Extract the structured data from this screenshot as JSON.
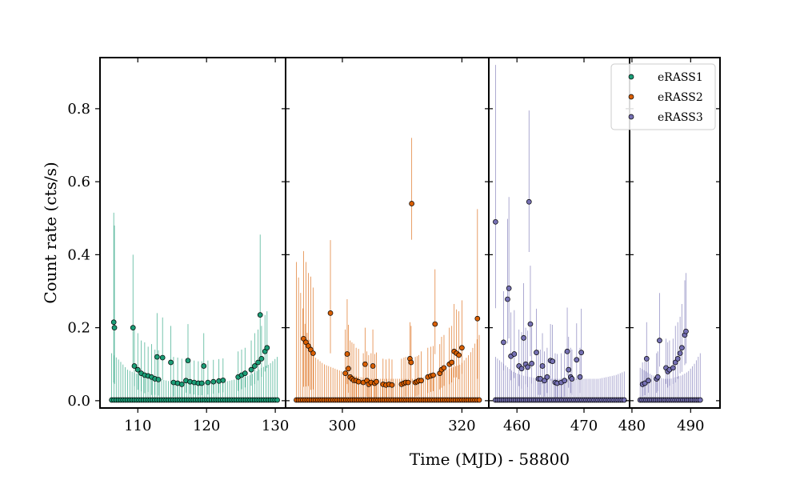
{
  "chart_data": {
    "type": "scatter",
    "xlabel": "Time (MJD) - 58800",
    "ylabel": "Count rate (cts/s)",
    "ylim": [
      -0.02,
      0.94
    ],
    "yticks": [
      0.0,
      0.2,
      0.4,
      0.6,
      0.8
    ],
    "ytick_labels": [
      "0.0",
      "0.2",
      "0.4",
      "0.6",
      "0.8"
    ],
    "legend_position": "top-right",
    "panels": [
      {
        "xlim": [
          104.5,
          131.5
        ],
        "xticks": [
          110,
          120,
          130
        ],
        "xtick_labels": [
          "110",
          "120",
          "130"
        ],
        "zero_range": [
          106.2,
          130.3
        ],
        "zero_step": 0.33,
        "zero_err": [
          0.13,
          0.11,
          0.085,
          0.075,
          0.07,
          0.065,
          0.06,
          0.055,
          0.05,
          0.05,
          0.05,
          0.05,
          0.05,
          0.05,
          0.05,
          0.055,
          0.06,
          0.065,
          0.075,
          0.09,
          0.1,
          0.12
        ],
        "series": 0,
        "points": [
          [
            106.5,
            0.215,
            0.3
          ],
          [
            106.6,
            0.2,
            0.28
          ],
          [
            109.3,
            0.2,
            0.2
          ],
          [
            109.5,
            0.095,
            0.1
          ],
          [
            110.0,
            0.085,
            0.1
          ],
          [
            110.5,
            0.075,
            0.09
          ],
          [
            111.0,
            0.07,
            0.09
          ],
          [
            111.5,
            0.068,
            0.08
          ],
          [
            112.0,
            0.065,
            0.09
          ],
          [
            112.5,
            0.06,
            0.08
          ],
          [
            112.8,
            0.12,
            0.12
          ],
          [
            113.0,
            0.058,
            0.08
          ],
          [
            113.6,
            0.118,
            0.11
          ],
          [
            114.8,
            0.105,
            0.1
          ],
          [
            115.2,
            0.05,
            0.07
          ],
          [
            115.8,
            0.048,
            0.07
          ],
          [
            116.4,
            0.045,
            0.07
          ],
          [
            117.0,
            0.055,
            0.06
          ],
          [
            117.3,
            0.11,
            0.1
          ],
          [
            117.6,
            0.052,
            0.06
          ],
          [
            118.2,
            0.05,
            0.06
          ],
          [
            118.8,
            0.048,
            0.06
          ],
          [
            119.3,
            0.048,
            0.06
          ],
          [
            119.6,
            0.095,
            0.09
          ],
          [
            120.2,
            0.05,
            0.06
          ],
          [
            121.0,
            0.052,
            0.06
          ],
          [
            121.8,
            0.054,
            0.06
          ],
          [
            122.4,
            0.056,
            0.06
          ],
          [
            124.6,
            0.065,
            0.07
          ],
          [
            125.1,
            0.07,
            0.07
          ],
          [
            125.6,
            0.075,
            0.07
          ],
          [
            126.5,
            0.085,
            0.08
          ],
          [
            127.0,
            0.095,
            0.09
          ],
          [
            127.5,
            0.105,
            0.09
          ],
          [
            127.8,
            0.235,
            0.22
          ],
          [
            128.0,
            0.115,
            0.09
          ],
          [
            128.5,
            0.135,
            0.1
          ],
          [
            128.8,
            0.145,
            0.1
          ]
        ]
      },
      {
        "xlim": [
          290.5,
          324.5
        ],
        "xticks": [
          300,
          320
        ],
        "xtick_labels": [
          "300",
          "320"
        ],
        "zero_range": [
          292.3,
          323.2
        ],
        "zero_step": 0.36,
        "zero_err": [
          0.38,
          0.2,
          0.12,
          0.1,
          0.09,
          0.08,
          0.07,
          0.065,
          0.06,
          0.06,
          0.06,
          0.06,
          0.06,
          0.06,
          0.065,
          0.07,
          0.08,
          0.09,
          0.1,
          0.13,
          0.18
        ],
        "series": 1,
        "points": [
          [
            293.5,
            0.17,
            0.24
          ],
          [
            293.9,
            0.16,
            0.22
          ],
          [
            294.3,
            0.15,
            0.2
          ],
          [
            294.7,
            0.14,
            0.2
          ],
          [
            295.1,
            0.13,
            0.18
          ],
          [
            298.0,
            0.24,
            0.2
          ],
          [
            300.5,
            0.075,
            0.12
          ],
          [
            300.8,
            0.128,
            0.15
          ],
          [
            301.0,
            0.088,
            0.12
          ],
          [
            301.3,
            0.065,
            0.1
          ],
          [
            301.6,
            0.06,
            0.1
          ],
          [
            301.9,
            0.056,
            0.1
          ],
          [
            302.3,
            0.055,
            0.09
          ],
          [
            302.7,
            0.052,
            0.09
          ],
          [
            303.5,
            0.05,
            0.08
          ],
          [
            303.8,
            0.1,
            0.1
          ],
          [
            304.1,
            0.055,
            0.08
          ],
          [
            304.4,
            0.045,
            0.08
          ],
          [
            304.8,
            0.05,
            0.08
          ],
          [
            305.1,
            0.095,
            0.1
          ],
          [
            305.4,
            0.048,
            0.08
          ],
          [
            305.7,
            0.052,
            0.08
          ],
          [
            306.8,
            0.045,
            0.07
          ],
          [
            307.3,
            0.043,
            0.07
          ],
          [
            307.8,
            0.045,
            0.07
          ],
          [
            308.3,
            0.043,
            0.07
          ],
          [
            309.9,
            0.045,
            0.07
          ],
          [
            310.3,
            0.048,
            0.07
          ],
          [
            310.6,
            0.05,
            0.07
          ],
          [
            311.0,
            0.05,
            0.07
          ],
          [
            311.3,
            0.115,
            0.1
          ],
          [
            311.5,
            0.105,
            0.1
          ],
          [
            311.6,
            0.54,
            0.18
          ],
          [
            312.2,
            0.05,
            0.07
          ],
          [
            312.5,
            0.052,
            0.07
          ],
          [
            312.8,
            0.055,
            0.07
          ],
          [
            313.2,
            0.055,
            0.08
          ],
          [
            314.3,
            0.065,
            0.08
          ],
          [
            314.8,
            0.068,
            0.08
          ],
          [
            315.2,
            0.07,
            0.08
          ],
          [
            315.5,
            0.21,
            0.15
          ],
          [
            316.3,
            0.075,
            0.08
          ],
          [
            316.6,
            0.085,
            0.09
          ],
          [
            317.0,
            0.09,
            0.09
          ],
          [
            317.9,
            0.1,
            0.1
          ],
          [
            318.3,
            0.105,
            0.1
          ],
          [
            318.7,
            0.135,
            0.13
          ],
          [
            319.1,
            0.13,
            0.12
          ],
          [
            319.5,
            0.125,
            0.12
          ],
          [
            320.0,
            0.145,
            0.13
          ],
          [
            322.6,
            0.225,
            0.3
          ]
        ]
      },
      {
        "xlim": [
          455.8,
          476.8
        ],
        "xticks": [
          460,
          470
        ],
        "xtick_labels": [
          "460",
          "470"
        ],
        "zero_range": [
          456.8,
          476.2
        ],
        "zero_step": 0.3,
        "zero_err": [
          0.12,
          0.1,
          0.08,
          0.07,
          0.065,
          0.06,
          0.06,
          0.06,
          0.06,
          0.06,
          0.06,
          0.06,
          0.06,
          0.065,
          0.07,
          0.08
        ],
        "series": 2,
        "points": [
          [
            456.8,
            0.49,
            0.43
          ],
          [
            458.0,
            0.16,
            0.14
          ],
          [
            458.6,
            0.278,
            0.22
          ],
          [
            458.8,
            0.308,
            0.25
          ],
          [
            459.1,
            0.122,
            0.12
          ],
          [
            459.6,
            0.128,
            0.12
          ],
          [
            460.3,
            0.095,
            0.1
          ],
          [
            460.7,
            0.088,
            0.1
          ],
          [
            461.0,
            0.172,
            0.15
          ],
          [
            461.3,
            0.1,
            0.1
          ],
          [
            461.6,
            0.092,
            0.1
          ],
          [
            461.8,
            0.545,
            0.25
          ],
          [
            462.0,
            0.21,
            0.16
          ],
          [
            462.2,
            0.102,
            0.1
          ],
          [
            462.9,
            0.132,
            0.12
          ],
          [
            463.2,
            0.06,
            0.08
          ],
          [
            463.5,
            0.06,
            0.08
          ],
          [
            463.8,
            0.095,
            0.09
          ],
          [
            464.1,
            0.055,
            0.08
          ],
          [
            464.5,
            0.065,
            0.08
          ],
          [
            465.0,
            0.11,
            0.1
          ],
          [
            465.3,
            0.108,
            0.1
          ],
          [
            465.7,
            0.05,
            0.08
          ],
          [
            466.0,
            0.048,
            0.08
          ],
          [
            466.6,
            0.05,
            0.08
          ],
          [
            467.1,
            0.055,
            0.08
          ],
          [
            467.5,
            0.135,
            0.12
          ],
          [
            467.7,
            0.085,
            0.09
          ],
          [
            468.0,
            0.065,
            0.08
          ],
          [
            468.2,
            0.06,
            0.08
          ],
          [
            468.9,
            0.112,
            0.1
          ],
          [
            469.4,
            0.065,
            0.08
          ],
          [
            469.6,
            0.132,
            0.12
          ]
        ]
      },
      {
        "xlim": [
          479.6,
          495.0
        ],
        "xticks": [
          480,
          490
        ],
        "xtick_labels": [
          "480",
          "490"
        ],
        "zero_range": [
          481.4,
          491.8
        ],
        "zero_step": 0.33,
        "zero_err": [
          0.09,
          0.08,
          0.07,
          0.065,
          0.06,
          0.06,
          0.065,
          0.07,
          0.08,
          0.1,
          0.13
        ],
        "series": 2,
        "points": [
          [
            481.8,
            0.045,
            0.06
          ],
          [
            482.2,
            0.048,
            0.06
          ],
          [
            482.5,
            0.115,
            0.1
          ],
          [
            482.8,
            0.055,
            0.06
          ],
          [
            484.2,
            0.06,
            0.07
          ],
          [
            484.4,
            0.065,
            0.07
          ],
          [
            484.7,
            0.165,
            0.13
          ],
          [
            485.8,
            0.09,
            0.08
          ],
          [
            486.1,
            0.08,
            0.08
          ],
          [
            486.4,
            0.085,
            0.08
          ],
          [
            487.0,
            0.09,
            0.08
          ],
          [
            487.4,
            0.105,
            0.1
          ],
          [
            487.8,
            0.115,
            0.1
          ],
          [
            488.2,
            0.13,
            0.1
          ],
          [
            488.5,
            0.145,
            0.12
          ],
          [
            489.0,
            0.18,
            0.15
          ],
          [
            489.2,
            0.19,
            0.16
          ]
        ]
      }
    ],
    "series": [
      {
        "name": "eRASS1",
        "color": "#1b9e77"
      },
      {
        "name": "eRASS2",
        "color": "#d95f02"
      },
      {
        "name": "eRASS3",
        "color": "#7570b3"
      }
    ]
  }
}
